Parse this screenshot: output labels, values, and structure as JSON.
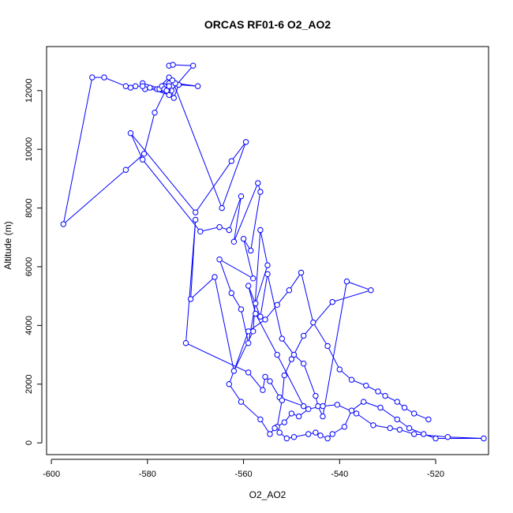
{
  "chart_data": {
    "type": "line",
    "title": "ORCAS RF01-6 O2_AO2",
    "xlabel": "O2_AO2",
    "ylabel": "Altitude (m)",
    "xlim": [
      -601,
      -509
    ],
    "ylim": [
      -400,
      13500
    ],
    "xticks": [
      -600,
      -580,
      -560,
      -540,
      -520
    ],
    "yticks": [
      0,
      2000,
      4000,
      6000,
      8000,
      10000,
      12000
    ],
    "grid": false,
    "legend": "none",
    "colors": {
      "series": "#0000ff",
      "axes": "#000000",
      "background": "#ffffff"
    },
    "series": [
      {
        "marker": "open-circle",
        "x": [
          -575.5,
          -574.7,
          -570.5,
          -575.0,
          -574.5,
          -573.5,
          -569.5,
          -574.2,
          -575.5,
          -578.0,
          -576.5,
          -577.0,
          -575.8,
          -581.0,
          -580.5,
          -579.5,
          -577.5,
          -575.5,
          -581.0,
          -582.5,
          -583.5,
          -584.5,
          -589.0,
          -591.5,
          -597.5,
          -584.5,
          -580.7,
          -578.5,
          -575.5,
          -577.0,
          -576.5,
          -576.0,
          -575.5,
          -574.8,
          -564.5,
          -559.5,
          -562.5,
          -570.0,
          -583.5,
          -581.0,
          -569.0,
          -565.0,
          -563.0,
          -560.5,
          -562.0,
          -557.0,
          -556.5,
          -558.5,
          -560.0,
          -558.0,
          -565.0,
          -562.5,
          -560.5,
          -559.0,
          -557.5,
          -555.0,
          -556.5,
          -558.0,
          -562.0,
          -566.0,
          -571.0,
          -570.0,
          -572.0,
          -559.0,
          -556.0,
          -555.5,
          -554.5,
          -552.5,
          -547.5,
          -553.0,
          -557.5,
          -559.0,
          -556.5,
          -555.0,
          -552.0,
          -549.5,
          -547.5,
          -545.0,
          -544.5,
          -543.5,
          -538.5,
          -533.5,
          -541.5,
          -547.5,
          -550.0,
          -551.5,
          -552.0,
          -553.0,
          -552.5,
          -551.0,
          -549.5,
          -546.5,
          -545.0,
          -544.0,
          -542.5,
          -541.5,
          -539.0,
          -537.5,
          -535.0,
          -531.5,
          -528.0,
          -525.5,
          -522.5,
          -520.0,
          -510.0,
          -517.5,
          -524.5,
          -527.5,
          -529.5,
          -533.0,
          -536.5,
          -540.5,
          -543.5,
          -546.5,
          -548.5,
          -550.0,
          -551.5,
          -553.5,
          -554.5,
          -556.5,
          -560.5,
          -563.0,
          -559.0,
          -555.5,
          -553.0,
          -550.5,
          -548.0,
          -545.5,
          -542.5,
          -540.0,
          -537.5,
          -534.5,
          -532.0,
          -530.5,
          -528.0,
          -526.5,
          -524.5,
          -521.5
        ],
        "y": [
          12850,
          12880,
          12850,
          12000,
          11750,
          12200,
          12150,
          12250,
          12450,
          12050,
          12150,
          12050,
          12000,
          12250,
          12050,
          12100,
          12050,
          11850,
          12150,
          12150,
          12100,
          12150,
          12450,
          12450,
          7450,
          9300,
          9850,
          11250,
          12250,
          12150,
          12050,
          12000,
          12150,
          12350,
          8000,
          10250,
          9600,
          7850,
          10550,
          9650,
          7200,
          7350,
          7250,
          8400,
          6850,
          8850,
          8550,
          6550,
          6950,
          5600,
          6250,
          5100,
          4550,
          3400,
          4750,
          6050,
          7250,
          3800,
          2450,
          5650,
          4900,
          7600,
          3400,
          2400,
          1800,
          2250,
          2100,
          1550,
          1250,
          3000,
          4400,
          5350,
          4300,
          5750,
          3550,
          3000,
          2700,
          1600,
          1250,
          900,
          5500,
          5200,
          4800,
          3650,
          2850,
          2300,
          1450,
          550,
          350,
          150,
          200,
          300,
          350,
          250,
          150,
          300,
          550,
          1100,
          1400,
          1200,
          800,
          500,
          300,
          150,
          150,
          200,
          300,
          450,
          500,
          600,
          1000,
          1300,
          1250,
          1150,
          900,
          1000,
          700,
          500,
          300,
          800,
          1400,
          2000,
          3800,
          4200,
          4700,
          5200,
          5800,
          4100,
          3300,
          2500,
          2150,
          1950,
          1750,
          1600,
          1400,
          1200,
          1000,
          800
        ]
      }
    ]
  }
}
